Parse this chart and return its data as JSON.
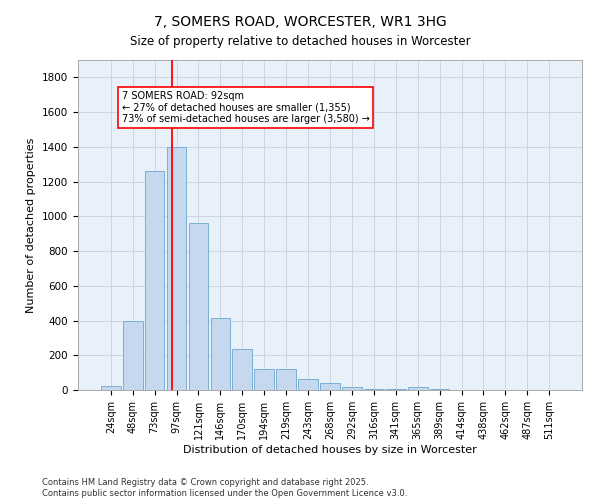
{
  "title": "7, SOMERS ROAD, WORCESTER, WR1 3HG",
  "subtitle": "Size of property relative to detached houses in Worcester",
  "xlabel": "Distribution of detached houses by size in Worcester",
  "ylabel": "Number of detached properties",
  "bar_color": "#c5d8ed",
  "bar_edge_color": "#7aafd4",
  "background_color": "#e8f0fa",
  "grid_color": "#c8cfe0",
  "categories": [
    "24sqm",
    "48sqm",
    "73sqm",
    "97sqm",
    "121sqm",
    "146sqm",
    "170sqm",
    "194sqm",
    "219sqm",
    "243sqm",
    "268sqm",
    "292sqm",
    "316sqm",
    "341sqm",
    "365sqm",
    "389sqm",
    "414sqm",
    "438sqm",
    "462sqm",
    "487sqm",
    "511sqm"
  ],
  "values": [
    25,
    400,
    1260,
    1400,
    960,
    415,
    235,
    120,
    120,
    65,
    40,
    20,
    5,
    5,
    15,
    5,
    0,
    0,
    0,
    0,
    0
  ],
  "ylim": [
    0,
    1900
  ],
  "yticks": [
    0,
    200,
    400,
    600,
    800,
    1000,
    1200,
    1400,
    1600,
    1800
  ],
  "red_line_x": 2.79,
  "annotation_line1": "7 SOMERS ROAD: 92sqm",
  "annotation_line2": "← 27% of detached houses are smaller (1,355)",
  "annotation_line3": "73% of semi-detached houses are larger (3,580) →",
  "footer_text": "Contains HM Land Registry data © Crown copyright and database right 2025.\nContains public sector information licensed under the Open Government Licence v3.0.",
  "figsize": [
    6.0,
    5.0
  ],
  "dpi": 100
}
